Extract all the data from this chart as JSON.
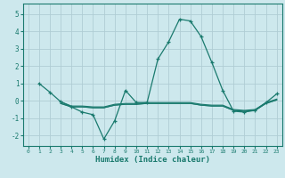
{
  "xlabel": "Humidex (Indice chaleur)",
  "background_color": "#cde8ed",
  "grid_color": "#b0cdd4",
  "line_color": "#1a7a6e",
  "xlim": [
    -0.5,
    23.5
  ],
  "ylim": [
    -2.6,
    5.6
  ],
  "yticks": [
    -2,
    -1,
    0,
    1,
    2,
    3,
    4,
    5
  ],
  "xticks": [
    0,
    1,
    2,
    3,
    4,
    5,
    6,
    7,
    8,
    9,
    10,
    11,
    12,
    13,
    14,
    15,
    16,
    17,
    18,
    19,
    20,
    21,
    22,
    23
  ],
  "series": [
    {
      "x": [
        1,
        2,
        3,
        4,
        5,
        6,
        7,
        8,
        9,
        10,
        11,
        12,
        13,
        14,
        15,
        16,
        17,
        18,
        19,
        20,
        21,
        22,
        23
      ],
      "y": [
        1.0,
        0.5,
        -0.05,
        -0.35,
        -0.65,
        -0.8,
        -2.2,
        -1.15,
        0.6,
        -0.1,
        -0.1,
        2.4,
        3.4,
        4.7,
        4.6,
        3.7,
        2.2,
        0.6,
        -0.6,
        -0.65,
        -0.55,
        -0.1,
        0.4
      ],
      "markers": true
    },
    {
      "x": [
        3,
        4,
        5,
        6,
        7,
        8,
        9,
        10,
        11,
        12,
        13,
        14,
        15,
        16,
        17,
        18,
        19,
        20,
        21,
        22,
        23
      ],
      "y": [
        -0.05,
        -0.3,
        -0.3,
        -0.35,
        -0.35,
        -0.2,
        -0.15,
        -0.15,
        -0.1,
        -0.1,
        -0.1,
        -0.1,
        -0.1,
        -0.2,
        -0.25,
        -0.25,
        -0.5,
        -0.55,
        -0.5,
        -0.1,
        0.1
      ],
      "markers": false
    },
    {
      "x": [
        3,
        4,
        5,
        6,
        7,
        8,
        9,
        10,
        11,
        12,
        13,
        14,
        15,
        16,
        17,
        18,
        19,
        20,
        21,
        22,
        23
      ],
      "y": [
        -0.15,
        -0.35,
        -0.35,
        -0.4,
        -0.4,
        -0.25,
        -0.2,
        -0.2,
        -0.15,
        -0.15,
        -0.15,
        -0.15,
        -0.15,
        -0.25,
        -0.3,
        -0.3,
        -0.55,
        -0.6,
        -0.55,
        -0.15,
        0.05
      ],
      "markers": false
    },
    {
      "x": [
        3,
        4,
        5,
        6,
        7,
        8,
        9,
        10,
        11,
        12,
        13,
        14,
        15,
        16,
        17,
        18,
        19,
        20,
        21,
        22,
        23
      ],
      "y": [
        -0.15,
        -0.35,
        -0.35,
        -0.4,
        -0.4,
        -0.25,
        -0.2,
        -0.2,
        -0.15,
        -0.15,
        -0.15,
        -0.15,
        -0.15,
        -0.25,
        -0.3,
        -0.3,
        -0.55,
        -0.6,
        -0.55,
        -0.15,
        0.05
      ],
      "markers": false
    }
  ]
}
